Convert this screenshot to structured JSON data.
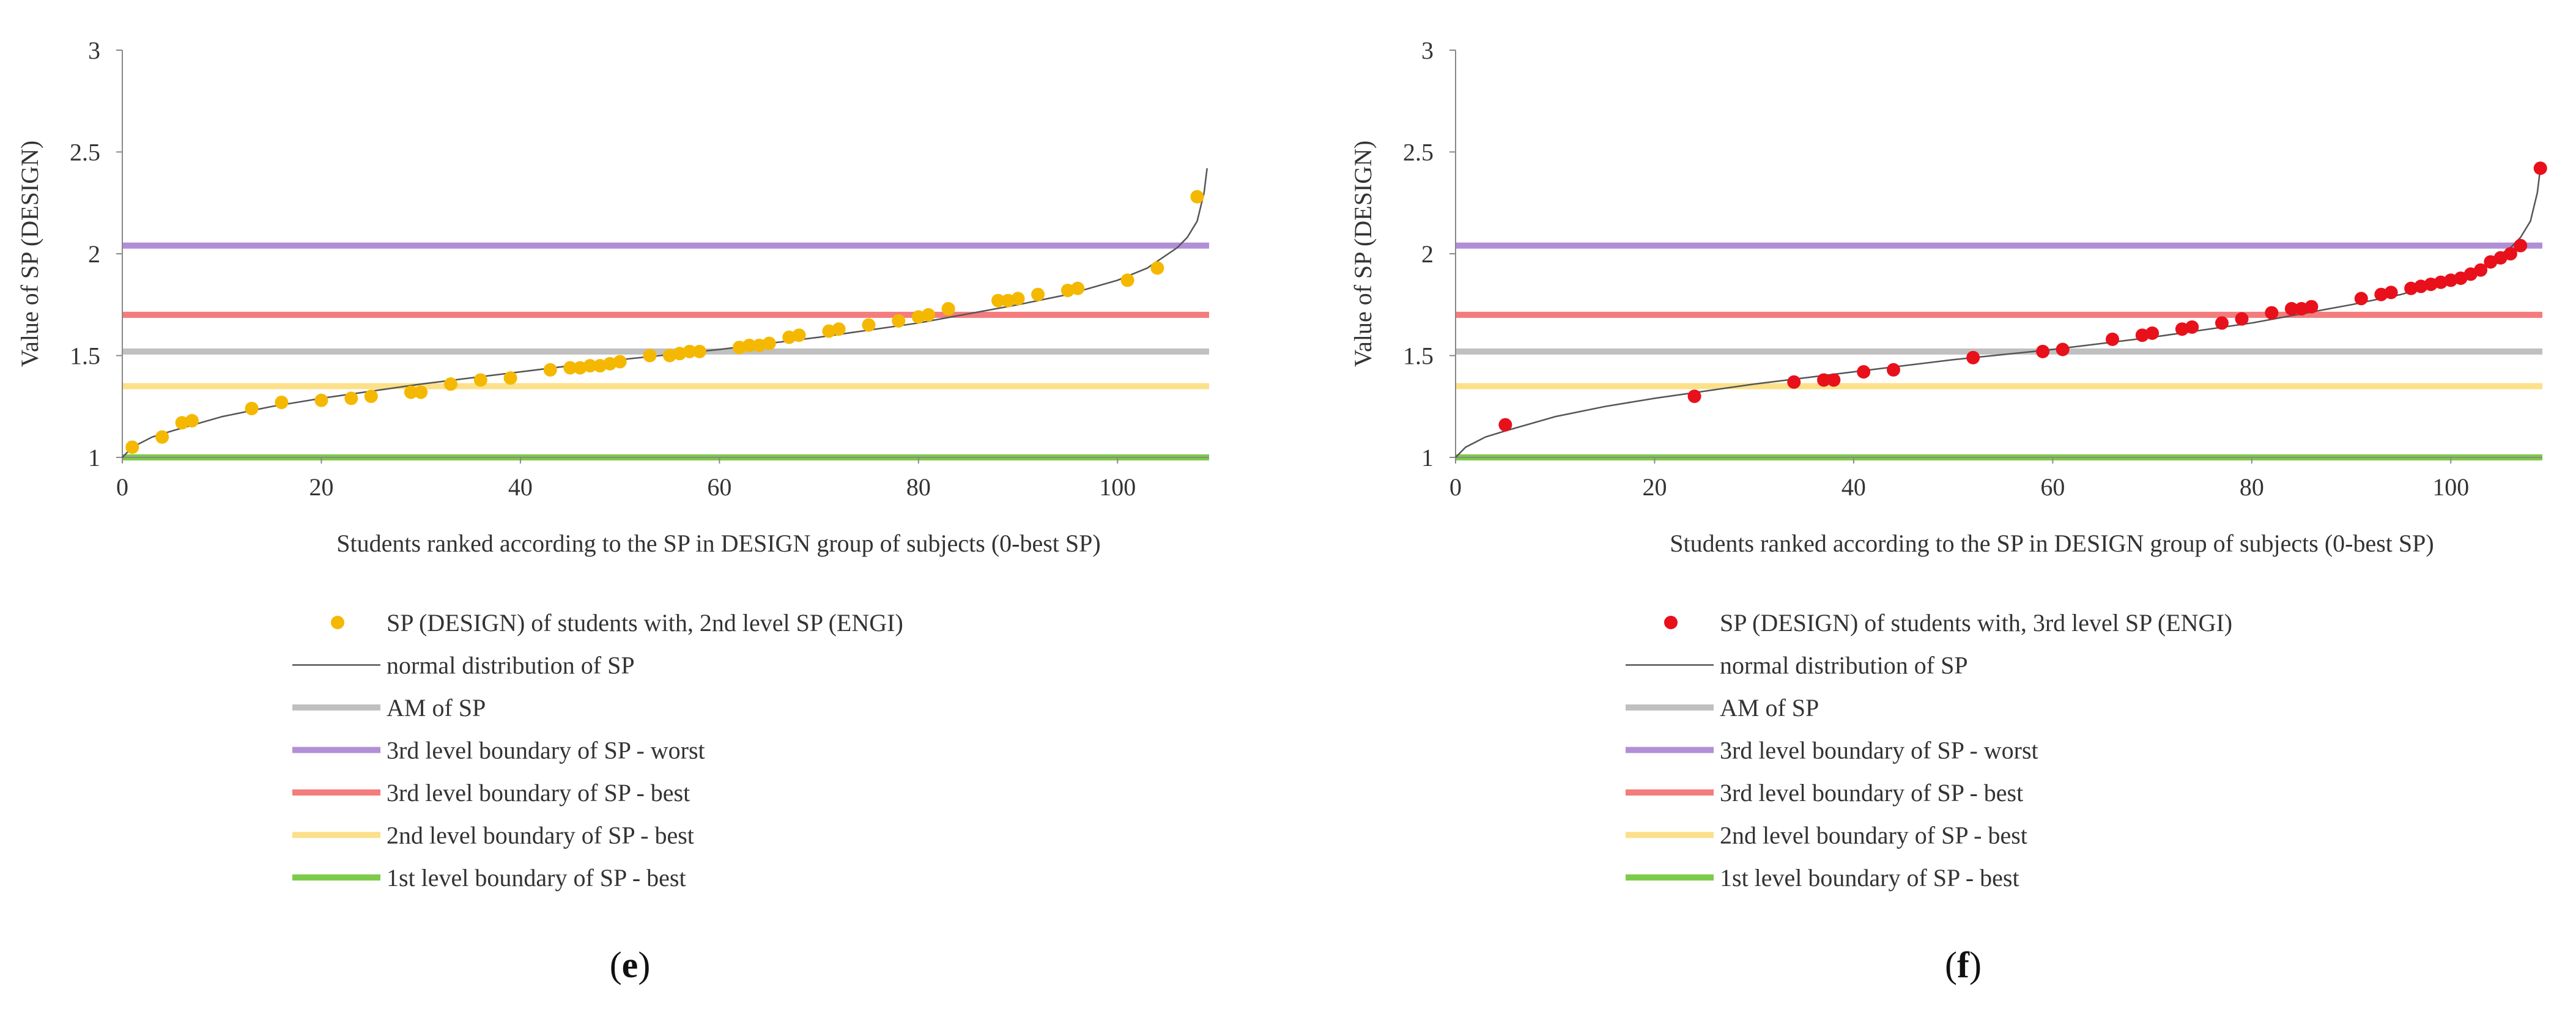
{
  "figure": {
    "caption_open": "(",
    "caption_close": ")"
  },
  "chart_data": [
    {
      "type": "scatter",
      "caption_letter": "e",
      "xlabel": "Students ranked according to the SP in DESIGN group of subjects (0-best SP)",
      "ylabel": "Value of SP (DESIGN)",
      "xlim": [
        0,
        110
      ],
      "ylim": [
        1,
        3
      ],
      "xticks": [
        0,
        20,
        40,
        60,
        80,
        100
      ],
      "yticks": [
        1,
        1.5,
        2,
        2.5,
        3
      ],
      "ytick_labels": [
        "1",
        "1.5",
        "2",
        "2.5",
        "3"
      ],
      "series": [
        {
          "name": "SP (DESIGN) of students with, 2nd level SP (ENGI)",
          "kind": "points",
          "color": "#f5b800",
          "x": [
            1,
            4,
            6,
            7,
            13,
            16,
            20,
            23,
            25,
            29,
            30,
            33,
            36,
            39,
            43,
            45,
            46,
            47,
            48,
            49,
            50,
            53,
            55,
            56,
            57,
            58,
            62,
            63,
            64,
            65,
            67,
            68,
            71,
            72,
            75,
            78,
            80,
            81,
            83,
            88,
            89,
            90,
            92,
            95,
            96,
            101,
            104,
            108
          ],
          "y": [
            1.05,
            1.1,
            1.17,
            1.18,
            1.24,
            1.27,
            1.28,
            1.29,
            1.3,
            1.32,
            1.32,
            1.36,
            1.38,
            1.39,
            1.43,
            1.44,
            1.44,
            1.45,
            1.45,
            1.46,
            1.47,
            1.5,
            1.5,
            1.51,
            1.52,
            1.52,
            1.54,
            1.55,
            1.55,
            1.56,
            1.59,
            1.6,
            1.62,
            1.63,
            1.65,
            1.67,
            1.69,
            1.7,
            1.73,
            1.77,
            1.77,
            1.78,
            1.8,
            1.82,
            1.83,
            1.87,
            1.93,
            2.28
          ]
        },
        {
          "name": "normal distribution of SP",
          "kind": "curve",
          "color": "#555555",
          "x": [
            0,
            1,
            3,
            5,
            10,
            15,
            20,
            30,
            40,
            50,
            60,
            70,
            80,
            90,
            95,
            100,
            103,
            106,
            107,
            108,
            108.7,
            109
          ],
          "y": [
            1.0,
            1.05,
            1.1,
            1.13,
            1.2,
            1.25,
            1.29,
            1.36,
            1.42,
            1.48,
            1.53,
            1.59,
            1.66,
            1.75,
            1.8,
            1.87,
            1.93,
            2.03,
            2.08,
            2.16,
            2.3,
            2.42
          ]
        },
        {
          "name": "AM of SP",
          "kind": "hline",
          "color": "#c0c0c0",
          "value": 1.52
        },
        {
          "name": "3rd level boundary of SP - worst",
          "kind": "hline",
          "color": "#b18fd6",
          "value": 2.04
        },
        {
          "name": "3rd level boundary of SP - best",
          "kind": "hline",
          "color": "#f47c7c",
          "value": 1.7
        },
        {
          "name": "2nd level boundary of SP - best",
          "kind": "hline",
          "color": "#fce08a",
          "value": 1.35
        },
        {
          "name": "1st level boundary of SP - best",
          "kind": "hline",
          "color": "#7ccb4a",
          "value": 1.0
        }
      ]
    },
    {
      "type": "scatter",
      "caption_letter": "f",
      "xlabel": "Students ranked according to the SP in DESIGN group of subjects (0-best SP)",
      "ylabel": "Value of SP (DESIGN)",
      "xlim": [
        0,
        110
      ],
      "ylim": [
        1,
        3
      ],
      "xticks": [
        0,
        20,
        40,
        60,
        80,
        100
      ],
      "yticks": [
        1,
        1.5,
        2,
        2.5,
        3
      ],
      "ytick_labels": [
        "1",
        "1.5",
        "2",
        "2.5",
        "3"
      ],
      "series": [
        {
          "name": "SP (DESIGN) of students with, 3rd level SP (ENGI)",
          "kind": "points",
          "color": "#e8101a",
          "x": [
            5,
            24,
            34,
            37,
            38,
            41,
            44,
            52,
            59,
            61,
            66,
            69,
            70,
            73,
            74,
            77,
            79,
            82,
            84,
            85,
            86,
            91,
            93,
            94,
            96,
            97,
            98,
            99,
            100,
            101,
            102,
            103,
            104,
            105,
            106,
            107,
            109
          ],
          "y": [
            1.16,
            1.3,
            1.37,
            1.38,
            1.38,
            1.42,
            1.43,
            1.49,
            1.52,
            1.53,
            1.58,
            1.6,
            1.61,
            1.63,
            1.64,
            1.66,
            1.68,
            1.71,
            1.73,
            1.73,
            1.74,
            1.78,
            1.8,
            1.81,
            1.83,
            1.84,
            1.85,
            1.86,
            1.87,
            1.88,
            1.9,
            1.92,
            1.96,
            1.98,
            2.0,
            2.04,
            2.42
          ]
        },
        {
          "name": "normal distribution of SP",
          "kind": "curve",
          "color": "#555555",
          "x": [
            0,
            1,
            3,
            5,
            10,
            15,
            20,
            30,
            40,
            50,
            60,
            70,
            80,
            90,
            95,
            100,
            103,
            106,
            107,
            108,
            108.7,
            109
          ],
          "y": [
            1.0,
            1.05,
            1.1,
            1.13,
            1.2,
            1.25,
            1.29,
            1.36,
            1.42,
            1.48,
            1.53,
            1.59,
            1.66,
            1.75,
            1.8,
            1.87,
            1.93,
            2.03,
            2.08,
            2.16,
            2.3,
            2.42
          ]
        },
        {
          "name": "AM of SP",
          "kind": "hline",
          "color": "#c0c0c0",
          "value": 1.52
        },
        {
          "name": "3rd level boundary of SP - worst",
          "kind": "hline",
          "color": "#b18fd6",
          "value": 2.04
        },
        {
          "name": "3rd level boundary of SP - best",
          "kind": "hline",
          "color": "#f47c7c",
          "value": 1.7
        },
        {
          "name": "2nd level boundary of SP - best",
          "kind": "hline",
          "color": "#fce08a",
          "value": 1.35
        },
        {
          "name": "1st level boundary of SP - best",
          "kind": "hline",
          "color": "#7ccb4a",
          "value": 1.0
        }
      ]
    }
  ]
}
